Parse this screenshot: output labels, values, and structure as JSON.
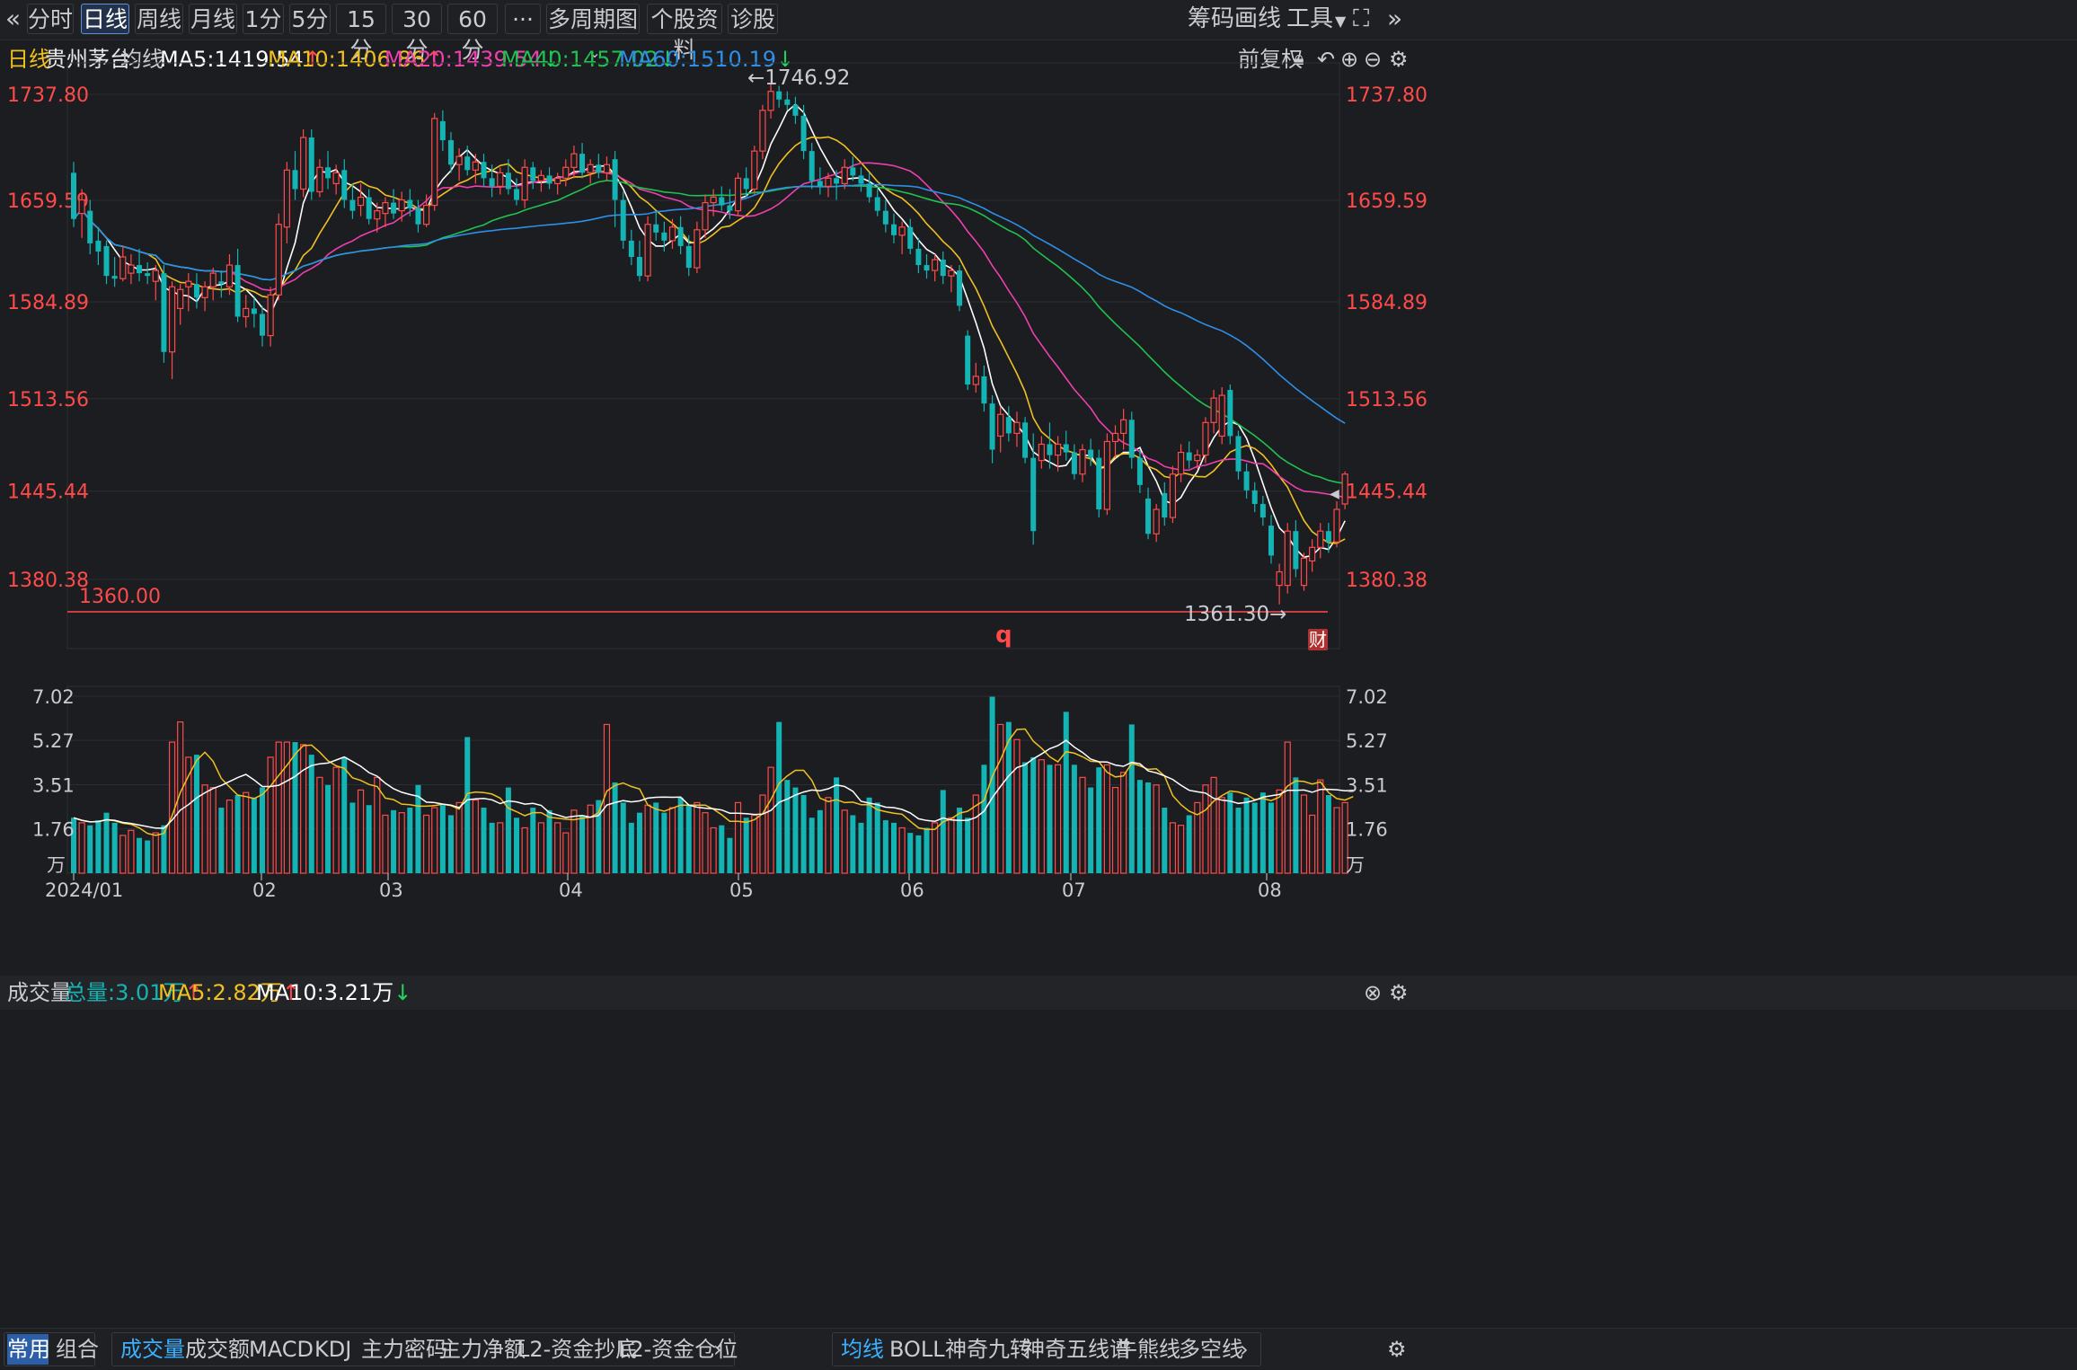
{
  "toolbar": {
    "back_icon": "double-chevron-left-icon",
    "periods": [
      "分时",
      "日线",
      "周线",
      "月线",
      "1分",
      "5分",
      "15分",
      "30分",
      "60分"
    ],
    "active_period": "日线",
    "more_label": "···",
    "multi_period_label": "多周期图",
    "stock_profile_label": "个股资料",
    "diagnose_label": "诊股",
    "chips_label": "筹码",
    "draw_label": "画线",
    "tools_label": "工具",
    "fullscreen_icon": "fullscreen-icon",
    "forward_icon": "double-chevron-right-icon"
  },
  "info": {
    "period": "日线",
    "stock_name": "贵州茅台",
    "ma_label": "均线",
    "ma5": "MA5:1419.54",
    "ma10": "MA10:1406.86",
    "ma20": "MA20:1439.54",
    "ma40": "MA40:1457.02",
    "ma60": "MA60:1510.19",
    "adjust_label": "前复权",
    "lock_icon": "lock-icon",
    "undo_icon": "undo-icon",
    "zoom_in_icon": "plus-circle-icon",
    "zoom_out_icon": "minus-circle-icon",
    "settings_icon": "gear-icon"
  },
  "colors": {
    "up": "#ff4a4a",
    "down": "#14b4b4",
    "ma5": "#ffffff",
    "ma10": "#f0c020",
    "ma20": "#ee3fae",
    "ma40": "#1fc24f",
    "ma60": "#2e8fe8",
    "price_axis": "#ff4a4a"
  },
  "price_axis_labels": [
    "1737.80",
    "1659.59",
    "1584.89",
    "1513.56",
    "1445.44",
    "1380.38"
  ],
  "annotations": {
    "high": "←1746.92",
    "low": "1361.30→",
    "alert_line": "1360.00",
    "q_mark": "q",
    "finance_badge": "财"
  },
  "volume_panel": {
    "title": "成交量",
    "total": "总量:3.01万",
    "ma5": "MA5:2.82万",
    "ma10": "MA10:3.21万",
    "axis_labels": [
      "7.02",
      "5.27",
      "3.51",
      "1.76",
      "万"
    ],
    "close_icon": "close-circle-icon",
    "settings_icon": "gear-icon"
  },
  "date_labels": [
    "2024/01",
    "02",
    "03",
    "04",
    "05",
    "06",
    "07",
    "08"
  ],
  "bottom": {
    "tabs_left": [
      "常用",
      "组合"
    ],
    "indicators": [
      "成交量",
      "成交额",
      "MACD",
      "KDJ",
      "主力密码",
      "主力净额",
      "L2-资金抄底",
      "L2-资金仓位"
    ],
    "overlays": [
      "均线",
      "BOLL",
      "神奇九转",
      "神奇五线谱",
      "牛熊线",
      "多空线"
    ],
    "next_icon": "chevron-right-icon",
    "settings_icon": "gear-icon"
  },
  "chart_data": {
    "type": "candlestick",
    "title": "贵州茅台 日线",
    "ylim": [
      1340,
      1760
    ],
    "candles": [
      {
        "o": 1680,
        "h": 1688,
        "l": 1640,
        "c": 1646
      },
      {
        "o": 1650,
        "h": 1668,
        "l": 1632,
        "c": 1660
      },
      {
        "o": 1652,
        "h": 1660,
        "l": 1620,
        "c": 1628
      },
      {
        "o": 1630,
        "h": 1640,
        "l": 1612,
        "c": 1622
      },
      {
        "o": 1626,
        "h": 1630,
        "l": 1598,
        "c": 1604
      },
      {
        "o": 1604,
        "h": 1618,
        "l": 1596,
        "c": 1602
      },
      {
        "o": 1602,
        "h": 1626,
        "l": 1600,
        "c": 1618
      },
      {
        "o": 1606,
        "h": 1620,
        "l": 1598,
        "c": 1612
      },
      {
        "o": 1612,
        "h": 1624,
        "l": 1600,
        "c": 1606
      },
      {
        "o": 1606,
        "h": 1614,
        "l": 1598,
        "c": 1604
      },
      {
        "o": 1600,
        "h": 1612,
        "l": 1586,
        "c": 1608
      },
      {
        "o": 1606,
        "h": 1612,
        "l": 1540,
        "c": 1548
      },
      {
        "o": 1548,
        "h": 1600,
        "l": 1528,
        "c": 1596
      },
      {
        "o": 1580,
        "h": 1598,
        "l": 1568,
        "c": 1594
      },
      {
        "o": 1596,
        "h": 1606,
        "l": 1578,
        "c": 1600
      },
      {
        "o": 1598,
        "h": 1606,
        "l": 1580,
        "c": 1588
      },
      {
        "o": 1588,
        "h": 1600,
        "l": 1578,
        "c": 1596
      },
      {
        "o": 1596,
        "h": 1610,
        "l": 1586,
        "c": 1606
      },
      {
        "o": 1600,
        "h": 1608,
        "l": 1588,
        "c": 1598
      },
      {
        "o": 1596,
        "h": 1620,
        "l": 1590,
        "c": 1612
      },
      {
        "o": 1612,
        "h": 1624,
        "l": 1570,
        "c": 1574
      },
      {
        "o": 1574,
        "h": 1590,
        "l": 1566,
        "c": 1580
      },
      {
        "o": 1580,
        "h": 1588,
        "l": 1566,
        "c": 1576
      },
      {
        "o": 1576,
        "h": 1582,
        "l": 1552,
        "c": 1560
      },
      {
        "o": 1560,
        "h": 1596,
        "l": 1552,
        "c": 1590
      },
      {
        "o": 1590,
        "h": 1650,
        "l": 1586,
        "c": 1642
      },
      {
        "o": 1640,
        "h": 1688,
        "l": 1628,
        "c": 1682
      },
      {
        "o": 1682,
        "h": 1696,
        "l": 1660,
        "c": 1668
      },
      {
        "o": 1668,
        "h": 1712,
        "l": 1662,
        "c": 1706
      },
      {
        "o": 1706,
        "h": 1712,
        "l": 1660,
        "c": 1666
      },
      {
        "o": 1666,
        "h": 1690,
        "l": 1662,
        "c": 1684
      },
      {
        "o": 1684,
        "h": 1696,
        "l": 1668,
        "c": 1676
      },
      {
        "o": 1672,
        "h": 1686,
        "l": 1664,
        "c": 1680
      },
      {
        "o": 1682,
        "h": 1690,
        "l": 1654,
        "c": 1660
      },
      {
        "o": 1660,
        "h": 1672,
        "l": 1646,
        "c": 1652
      },
      {
        "o": 1656,
        "h": 1672,
        "l": 1648,
        "c": 1662
      },
      {
        "o": 1662,
        "h": 1668,
        "l": 1642,
        "c": 1646
      },
      {
        "o": 1646,
        "h": 1658,
        "l": 1636,
        "c": 1652
      },
      {
        "o": 1650,
        "h": 1662,
        "l": 1640,
        "c": 1658
      },
      {
        "o": 1658,
        "h": 1668,
        "l": 1646,
        "c": 1650
      },
      {
        "o": 1652,
        "h": 1666,
        "l": 1644,
        "c": 1660
      },
      {
        "o": 1660,
        "h": 1668,
        "l": 1648,
        "c": 1654
      },
      {
        "o": 1654,
        "h": 1660,
        "l": 1636,
        "c": 1642
      },
      {
        "o": 1642,
        "h": 1664,
        "l": 1640,
        "c": 1656
      },
      {
        "o": 1656,
        "h": 1724,
        "l": 1652,
        "c": 1720
      },
      {
        "o": 1718,
        "h": 1726,
        "l": 1696,
        "c": 1704
      },
      {
        "o": 1704,
        "h": 1710,
        "l": 1680,
        "c": 1686
      },
      {
        "o": 1686,
        "h": 1698,
        "l": 1674,
        "c": 1692
      },
      {
        "o": 1692,
        "h": 1700,
        "l": 1678,
        "c": 1682
      },
      {
        "o": 1682,
        "h": 1694,
        "l": 1672,
        "c": 1688
      },
      {
        "o": 1688,
        "h": 1694,
        "l": 1670,
        "c": 1676
      },
      {
        "o": 1676,
        "h": 1686,
        "l": 1662,
        "c": 1670
      },
      {
        "o": 1670,
        "h": 1684,
        "l": 1664,
        "c": 1680
      },
      {
        "o": 1680,
        "h": 1690,
        "l": 1664,
        "c": 1668
      },
      {
        "o": 1668,
        "h": 1676,
        "l": 1656,
        "c": 1660
      },
      {
        "o": 1660,
        "h": 1690,
        "l": 1654,
        "c": 1684
      },
      {
        "o": 1684,
        "h": 1688,
        "l": 1668,
        "c": 1674
      },
      {
        "o": 1674,
        "h": 1682,
        "l": 1666,
        "c": 1678
      },
      {
        "o": 1678,
        "h": 1684,
        "l": 1668,
        "c": 1672
      },
      {
        "o": 1672,
        "h": 1680,
        "l": 1664,
        "c": 1676
      },
      {
        "o": 1676,
        "h": 1690,
        "l": 1670,
        "c": 1684
      },
      {
        "o": 1684,
        "h": 1700,
        "l": 1676,
        "c": 1694
      },
      {
        "o": 1694,
        "h": 1702,
        "l": 1676,
        "c": 1680
      },
      {
        "o": 1680,
        "h": 1690,
        "l": 1672,
        "c": 1686
      },
      {
        "o": 1686,
        "h": 1694,
        "l": 1676,
        "c": 1680
      },
      {
        "o": 1680,
        "h": 1692,
        "l": 1674,
        "c": 1686
      },
      {
        "o": 1690,
        "h": 1696,
        "l": 1640,
        "c": 1660
      },
      {
        "o": 1660,
        "h": 1666,
        "l": 1624,
        "c": 1630
      },
      {
        "o": 1630,
        "h": 1638,
        "l": 1612,
        "c": 1618
      },
      {
        "o": 1618,
        "h": 1630,
        "l": 1600,
        "c": 1604
      },
      {
        "o": 1604,
        "h": 1648,
        "l": 1600,
        "c": 1642
      },
      {
        "o": 1642,
        "h": 1652,
        "l": 1630,
        "c": 1636
      },
      {
        "o": 1636,
        "h": 1644,
        "l": 1622,
        "c": 1630
      },
      {
        "o": 1630,
        "h": 1646,
        "l": 1624,
        "c": 1640
      },
      {
        "o": 1640,
        "h": 1648,
        "l": 1620,
        "c": 1626
      },
      {
        "o": 1626,
        "h": 1634,
        "l": 1604,
        "c": 1610
      },
      {
        "o": 1610,
        "h": 1644,
        "l": 1606,
        "c": 1638
      },
      {
        "o": 1638,
        "h": 1664,
        "l": 1632,
        "c": 1658
      },
      {
        "o": 1658,
        "h": 1668,
        "l": 1648,
        "c": 1662
      },
      {
        "o": 1662,
        "h": 1670,
        "l": 1652,
        "c": 1656
      },
      {
        "o": 1656,
        "h": 1668,
        "l": 1646,
        "c": 1652
      },
      {
        "o": 1652,
        "h": 1680,
        "l": 1648,
        "c": 1676
      },
      {
        "o": 1676,
        "h": 1684,
        "l": 1662,
        "c": 1668
      },
      {
        "o": 1668,
        "h": 1700,
        "l": 1664,
        "c": 1696
      },
      {
        "o": 1696,
        "h": 1730,
        "l": 1690,
        "c": 1726
      },
      {
        "o": 1726,
        "h": 1746,
        "l": 1720,
        "c": 1740
      },
      {
        "o": 1740,
        "h": 1744,
        "l": 1728,
        "c": 1734
      },
      {
        "o": 1734,
        "h": 1740,
        "l": 1726,
        "c": 1730
      },
      {
        "o": 1730,
        "h": 1736,
        "l": 1716,
        "c": 1722
      },
      {
        "o": 1722,
        "h": 1730,
        "l": 1690,
        "c": 1696
      },
      {
        "o": 1696,
        "h": 1702,
        "l": 1668,
        "c": 1674
      },
      {
        "o": 1674,
        "h": 1684,
        "l": 1664,
        "c": 1670
      },
      {
        "o": 1670,
        "h": 1680,
        "l": 1662,
        "c": 1676
      },
      {
        "o": 1676,
        "h": 1682,
        "l": 1660,
        "c": 1672
      },
      {
        "o": 1672,
        "h": 1690,
        "l": 1668,
        "c": 1684
      },
      {
        "o": 1684,
        "h": 1692,
        "l": 1674,
        "c": 1678
      },
      {
        "o": 1678,
        "h": 1684,
        "l": 1666,
        "c": 1672
      },
      {
        "o": 1672,
        "h": 1680,
        "l": 1658,
        "c": 1662
      },
      {
        "o": 1662,
        "h": 1668,
        "l": 1648,
        "c": 1652
      },
      {
        "o": 1652,
        "h": 1660,
        "l": 1636,
        "c": 1642
      },
      {
        "o": 1642,
        "h": 1650,
        "l": 1628,
        "c": 1634
      },
      {
        "o": 1634,
        "h": 1644,
        "l": 1620,
        "c": 1640
      },
      {
        "o": 1640,
        "h": 1646,
        "l": 1620,
        "c": 1624
      },
      {
        "o": 1624,
        "h": 1632,
        "l": 1606,
        "c": 1612
      },
      {
        "o": 1612,
        "h": 1620,
        "l": 1602,
        "c": 1608
      },
      {
        "o": 1608,
        "h": 1620,
        "l": 1600,
        "c": 1616
      },
      {
        "o": 1616,
        "h": 1622,
        "l": 1598,
        "c": 1604
      },
      {
        "o": 1604,
        "h": 1612,
        "l": 1592,
        "c": 1608
      },
      {
        "o": 1608,
        "h": 1612,
        "l": 1578,
        "c": 1582
      },
      {
        "o": 1560,
        "h": 1564,
        "l": 1520,
        "c": 1524
      },
      {
        "o": 1524,
        "h": 1540,
        "l": 1518,
        "c": 1530
      },
      {
        "o": 1530,
        "h": 1538,
        "l": 1504,
        "c": 1510
      },
      {
        "o": 1510,
        "h": 1516,
        "l": 1466,
        "c": 1476
      },
      {
        "o": 1486,
        "h": 1508,
        "l": 1474,
        "c": 1502
      },
      {
        "o": 1500,
        "h": 1508,
        "l": 1482,
        "c": 1488
      },
      {
        "o": 1488,
        "h": 1504,
        "l": 1478,
        "c": 1496
      },
      {
        "o": 1496,
        "h": 1500,
        "l": 1466,
        "c": 1470
      },
      {
        "o": 1470,
        "h": 1488,
        "l": 1406,
        "c": 1416
      },
      {
        "o": 1468,
        "h": 1486,
        "l": 1462,
        "c": 1480
      },
      {
        "o": 1480,
        "h": 1496,
        "l": 1462,
        "c": 1472
      },
      {
        "o": 1472,
        "h": 1486,
        "l": 1460,
        "c": 1480
      },
      {
        "o": 1480,
        "h": 1490,
        "l": 1468,
        "c": 1474
      },
      {
        "o": 1474,
        "h": 1480,
        "l": 1454,
        "c": 1458
      },
      {
        "o": 1458,
        "h": 1480,
        "l": 1452,
        "c": 1476
      },
      {
        "o": 1476,
        "h": 1484,
        "l": 1464,
        "c": 1470
      },
      {
        "o": 1470,
        "h": 1476,
        "l": 1426,
        "c": 1432
      },
      {
        "o": 1432,
        "h": 1488,
        "l": 1428,
        "c": 1482
      },
      {
        "o": 1482,
        "h": 1494,
        "l": 1470,
        "c": 1488
      },
      {
        "o": 1488,
        "h": 1506,
        "l": 1476,
        "c": 1498
      },
      {
        "o": 1498,
        "h": 1504,
        "l": 1462,
        "c": 1470
      },
      {
        "o": 1470,
        "h": 1476,
        "l": 1444,
        "c": 1450
      },
      {
        "o": 1440,
        "h": 1448,
        "l": 1410,
        "c": 1414
      },
      {
        "o": 1414,
        "h": 1436,
        "l": 1408,
        "c": 1432
      },
      {
        "o": 1444,
        "h": 1452,
        "l": 1420,
        "c": 1426
      },
      {
        "o": 1426,
        "h": 1464,
        "l": 1422,
        "c": 1458
      },
      {
        "o": 1458,
        "h": 1480,
        "l": 1452,
        "c": 1474
      },
      {
        "o": 1474,
        "h": 1482,
        "l": 1462,
        "c": 1468
      },
      {
        "o": 1468,
        "h": 1476,
        "l": 1462,
        "c": 1472
      },
      {
        "o": 1472,
        "h": 1500,
        "l": 1466,
        "c": 1496
      },
      {
        "o": 1496,
        "h": 1520,
        "l": 1488,
        "c": 1514
      },
      {
        "o": 1486,
        "h": 1522,
        "l": 1480,
        "c": 1516
      },
      {
        "o": 1520,
        "h": 1524,
        "l": 1480,
        "c": 1486
      },
      {
        "o": 1486,
        "h": 1490,
        "l": 1454,
        "c": 1460
      },
      {
        "o": 1460,
        "h": 1466,
        "l": 1440,
        "c": 1446
      },
      {
        "o": 1446,
        "h": 1452,
        "l": 1430,
        "c": 1436
      },
      {
        "o": 1436,
        "h": 1442,
        "l": 1420,
        "c": 1426
      },
      {
        "o": 1420,
        "h": 1428,
        "l": 1392,
        "c": 1398
      },
      {
        "o": 1376,
        "h": 1392,
        "l": 1362,
        "c": 1386
      },
      {
        "o": 1376,
        "h": 1422,
        "l": 1370,
        "c": 1416
      },
      {
        "o": 1416,
        "h": 1424,
        "l": 1382,
        "c": 1388
      },
      {
        "o": 1376,
        "h": 1400,
        "l": 1372,
        "c": 1396
      },
      {
        "o": 1394,
        "h": 1410,
        "l": 1386,
        "c": 1404
      },
      {
        "o": 1404,
        "h": 1422,
        "l": 1396,
        "c": 1416
      },
      {
        "o": 1416,
        "h": 1422,
        "l": 1400,
        "c": 1408
      },
      {
        "o": 1408,
        "h": 1438,
        "l": 1404,
        "c": 1432
      },
      {
        "o": 1436,
        "h": 1460,
        "l": 1432,
        "c": 1458
      }
    ],
    "volume": [
      2.2,
      2.0,
      1.9,
      2.1,
      2.4,
      2.0,
      1.5,
      1.7,
      1.4,
      1.3,
      1.6,
      1.9,
      5.2,
      6.0,
      4.6,
      4.7,
      3.5,
      3.4,
      2.6,
      2.9,
      3.1,
      3.2,
      3.0,
      3.4,
      4.6,
      5.2,
      5.2,
      5.2,
      5.1,
      4.7,
      3.8,
      3.5,
      4.2,
      4.6,
      2.8,
      3.3,
      2.7,
      3.8,
      2.3,
      2.5,
      2.4,
      2.6,
      3.5,
      2.3,
      2.6,
      2.7,
      2.3,
      2.8,
      5.4,
      2.9,
      2.6,
      2.0,
      2.0,
      3.4,
      2.2,
      1.8,
      2.6,
      2.0,
      2.5,
      2.0,
      1.6,
      2.5,
      2.3,
      2.7,
      2.9,
      5.9,
      3.6,
      2.8,
      2.0,
      2.4,
      2.7,
      2.8,
      2.4,
      2.6,
      3.0,
      2.7,
      2.8,
      2.4,
      1.8,
      1.9,
      1.4,
      2.8,
      2.2,
      2.3,
      3.1,
      4.2,
      6.0,
      3.7,
      3.4,
      3.1,
      2.2,
      2.5,
      3.0,
      3.8,
      2.5,
      2.3,
      2.0,
      3.0,
      2.8,
      2.1,
      2.0,
      1.8,
      1.6,
      1.5,
      1.8,
      2.0,
      3.3,
      2.2,
      2.6,
      2.2,
      3.1,
      4.3,
      7.0,
      5.9,
      6.0,
      5.3,
      4.4,
      4.6,
      4.5,
      4.3,
      4.3,
      6.4,
      4.3,
      3.8,
      3.4,
      4.2,
      4.3,
      3.4,
      4.0,
      5.9,
      3.7,
      3.6,
      3.5,
      2.6,
      2.0,
      1.9,
      2.3,
      2.8,
      3.5,
      3.8,
      3.0,
      3.2,
      2.6,
      3.0,
      2.8,
      3.2,
      2.8,
      3.3,
      5.2,
      3.8,
      3.1,
      2.3,
      3.7,
      3.1,
      2.6,
      2.8,
      3.0
    ],
    "ma_series": [
      {
        "name": "MA5",
        "value": "1419.54"
      },
      {
        "name": "MA10",
        "value": "1406.86"
      },
      {
        "name": "MA20",
        "value": "1439.54"
      },
      {
        "name": "MA40",
        "value": "1457.02"
      },
      {
        "name": "MA60",
        "value": "1510.19"
      }
    ],
    "price_ticks": [
      1737.8,
      1659.59,
      1584.89,
      1513.56,
      1445.44,
      1380.38
    ],
    "volume_ticks": [
      7.02,
      5.27,
      3.51,
      1.76
    ],
    "volume_unit": "万",
    "x_labels": [
      "2024/01",
      "02",
      "03",
      "04",
      "05",
      "06",
      "07",
      "08"
    ],
    "high_mark": 1746.92,
    "low_mark": 1361.3,
    "alert_level": 1360.0
  }
}
